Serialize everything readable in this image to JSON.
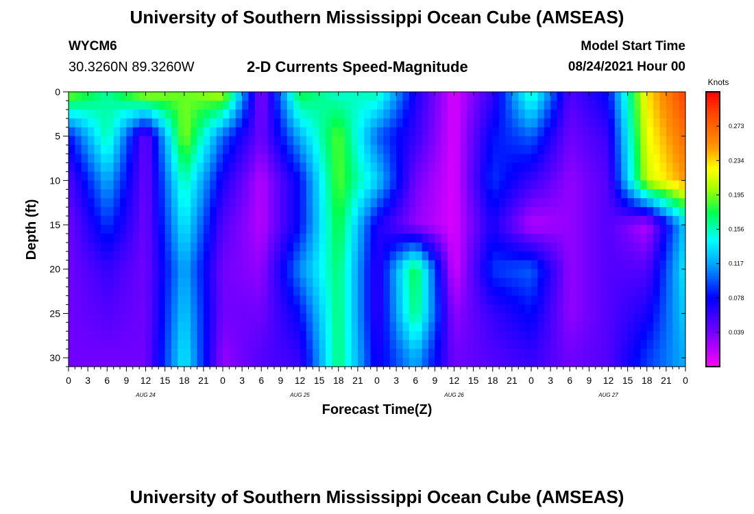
{
  "page": {
    "title_top": "University of Southern Mississippi Ocean Cube (AMSEAS)",
    "title_bottom": "University of Southern Mississippi Ocean Cube (AMSEAS)",
    "station_id": "WYCM6",
    "station_coords": "30.3260N  89.3260W",
    "plot_title": "2-D Currents Speed-Magnitude",
    "model_start_label": "Model Start Time",
    "model_start_value": "08/24/2021 Hour 00"
  },
  "chart_data": {
    "type": "heatmap",
    "title": "2-D Currents Speed-Magnitude",
    "xlabel": "Forecast Time(Z)",
    "ylabel": "Depth (ft)",
    "units_label": "Knots",
    "x_unit": "hours since 08/24/2021 00Z",
    "x_range": [
      0,
      96
    ],
    "y_range": [
      0,
      31
    ],
    "y_inverted": true,
    "x_tick_labels": [
      "0",
      "3",
      "6",
      "9",
      "12",
      "15",
      "18",
      "21",
      "0",
      "3",
      "6",
      "9",
      "12",
      "15",
      "18",
      "21",
      "0",
      "3",
      "6",
      "9",
      "12",
      "15",
      "18",
      "21",
      "0",
      "3",
      "6",
      "9",
      "12",
      "15",
      "18",
      "21",
      "0"
    ],
    "day_labels": [
      {
        "x": 12,
        "text": "AUG 24"
      },
      {
        "x": 36,
        "text": "AUG 25"
      },
      {
        "x": 60,
        "text": "AUG 26"
      },
      {
        "x": 84,
        "text": "AUG 27"
      }
    ],
    "y_ticks": [
      0,
      5,
      10,
      15,
      20,
      25,
      30
    ],
    "colorbar": {
      "min": 0.0,
      "max": 0.312,
      "tick_values": [
        0.039,
        0.078,
        0.117,
        0.156,
        0.195,
        0.234,
        0.273
      ],
      "tick_labels": [
        "0.039",
        "0.078",
        "0.117",
        "0.156",
        "0.195",
        "0.234",
        "0.273"
      ]
    },
    "column_hours": [
      0,
      6,
      12,
      18,
      24,
      30,
      36,
      42,
      48,
      54,
      60,
      66,
      72,
      78,
      84,
      90,
      96
    ],
    "depth_rows_ft": [
      0,
      5,
      10,
      15,
      20,
      25,
      30
    ],
    "speed_knots": [
      [
        0.2,
        0.16,
        0.21,
        0.19,
        0.21,
        0.03,
        0.18,
        0.15,
        0.16,
        0.07,
        0.01,
        0.06,
        0.16,
        0.05,
        0.08,
        0.23,
        0.29
      ],
      [
        0.08,
        0.16,
        0.04,
        0.2,
        0.1,
        0.04,
        0.12,
        0.19,
        0.1,
        0.06,
        0.01,
        0.08,
        0.1,
        0.04,
        0.06,
        0.22,
        0.27
      ],
      [
        0.05,
        0.12,
        0.04,
        0.16,
        0.07,
        0.02,
        0.08,
        0.19,
        0.13,
        0.04,
        0.01,
        0.09,
        0.06,
        0.03,
        0.05,
        0.21,
        0.25
      ],
      [
        0.04,
        0.09,
        0.04,
        0.14,
        0.05,
        0.02,
        0.08,
        0.18,
        0.07,
        0.03,
        0.01,
        0.07,
        0.02,
        0.03,
        0.05,
        0.02,
        0.13
      ],
      [
        0.04,
        0.06,
        0.04,
        0.12,
        0.04,
        0.03,
        0.11,
        0.17,
        0.06,
        0.18,
        0.01,
        0.09,
        0.1,
        0.03,
        0.05,
        0.05,
        0.14
      ],
      [
        0.04,
        0.05,
        0.04,
        0.13,
        0.04,
        0.04,
        0.08,
        0.17,
        0.06,
        0.17,
        0.03,
        0.06,
        0.08,
        0.03,
        0.05,
        0.07,
        0.13
      ],
      [
        0.04,
        0.04,
        0.04,
        0.14,
        0.03,
        0.05,
        0.06,
        0.17,
        0.07,
        0.12,
        0.04,
        0.05,
        0.06,
        0.04,
        0.05,
        0.09,
        0.12
      ]
    ]
  }
}
